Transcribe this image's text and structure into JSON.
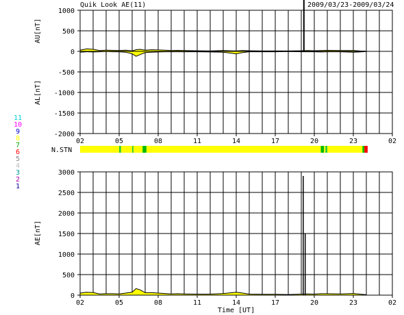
{
  "chart_data": [
    {
      "type": "area",
      "title": "Quik Look AE(11)",
      "date_range": "2009/03/23-2009/03/24",
      "ylabel_upper": "AU[nT]",
      "ylabel_lower": "AL[nT]",
      "ylim": [
        -2000,
        1000
      ],
      "yticks": [
        1000,
        500,
        0,
        -500,
        -1000,
        -1500,
        -2000
      ],
      "xlim": [
        2,
        26
      ],
      "xtick_labels": [
        "02",
        "05",
        "08",
        "11",
        "14",
        "17",
        "20",
        "23",
        "02"
      ],
      "series": [
        {
          "name": "AU",
          "x": [
            2.0,
            2.5,
            3.0,
            3.5,
            4.0,
            4.5,
            5.0,
            5.5,
            6.0,
            6.3,
            6.6,
            7.0,
            7.5,
            8.0,
            8.5,
            9.0,
            9.5,
            10.0,
            11.0,
            12.0,
            13.0,
            13.5,
            14.0,
            14.5,
            15.0,
            16.0,
            17.0,
            18.0,
            19.0,
            19.5,
            20.0,
            20.5,
            21.0,
            22.0,
            23.0,
            23.5,
            24.0
          ],
          "y": [
            30,
            60,
            50,
            20,
            30,
            25,
            20,
            30,
            10,
            40,
            50,
            30,
            40,
            35,
            30,
            20,
            25,
            20,
            15,
            10,
            20,
            15,
            10,
            20,
            15,
            10,
            10,
            10,
            15,
            20,
            15,
            20,
            25,
            20,
            20,
            10,
            5
          ]
        },
        {
          "name": "AL",
          "x": [
            2.0,
            2.5,
            3.0,
            3.5,
            4.0,
            4.5,
            5.0,
            5.5,
            6.0,
            6.3,
            6.6,
            7.0,
            7.5,
            8.0,
            8.5,
            9.0,
            9.5,
            10.0,
            11.0,
            12.0,
            13.0,
            13.5,
            14.0,
            14.5,
            15.0,
            16.0,
            17.0,
            18.0,
            19.0,
            19.5,
            20.0,
            20.5,
            21.0,
            22.0,
            23.0,
            23.5,
            24.0
          ],
          "y": [
            -20,
            -10,
            -15,
            -10,
            -5,
            -10,
            -10,
            -20,
            -60,
            -120,
            -80,
            -30,
            -20,
            -15,
            -10,
            -10,
            -10,
            -10,
            -10,
            -15,
            -20,
            -40,
            -60,
            -30,
            -10,
            -10,
            -10,
            -5,
            -10,
            -10,
            -10,
            -15,
            -10,
            -10,
            -20,
            -15,
            -5
          ]
        }
      ],
      "spike_x": 19.2
    },
    {
      "type": "heatmap",
      "label": "N.STN",
      "xlim": [
        2,
        26
      ],
      "segments": [
        {
          "x0": 2.0,
          "x1": 5.0,
          "color": "#ffff00"
        },
        {
          "x0": 5.0,
          "x1": 5.15,
          "color": "#33cc33"
        },
        {
          "x0": 5.15,
          "x1": 6.0,
          "color": "#ffff00"
        },
        {
          "x0": 6.0,
          "x1": 6.1,
          "color": "#33cc33"
        },
        {
          "x0": 6.1,
          "x1": 6.8,
          "color": "#ffff00"
        },
        {
          "x0": 6.8,
          "x1": 7.1,
          "color": "#00bb00"
        },
        {
          "x0": 7.1,
          "x1": 20.5,
          "color": "#ffff00"
        },
        {
          "x0": 20.5,
          "x1": 20.75,
          "color": "#00bb00"
        },
        {
          "x0": 20.75,
          "x1": 20.85,
          "color": "#ffff00"
        },
        {
          "x0": 20.85,
          "x1": 21.0,
          "color": "#33cc33"
        },
        {
          "x0": 21.0,
          "x1": 23.7,
          "color": "#ffff00"
        },
        {
          "x0": 23.7,
          "x1": 23.85,
          "color": "#00bb00"
        },
        {
          "x0": 23.85,
          "x1": 24.1,
          "color": "#ff0000"
        }
      ],
      "legend": [
        {
          "label": "11",
          "color": "#00cccc"
        },
        {
          "label": "10",
          "color": "#ff00ff"
        },
        {
          "label": "9",
          "color": "#0000cc"
        },
        {
          "label": "8",
          "color": "#ffff00"
        },
        {
          "label": "7",
          "color": "#00aa00"
        },
        {
          "label": "6",
          "color": "#ff0000"
        },
        {
          "label": "5",
          "color": "#888888"
        },
        {
          "label": "4",
          "color": "#bbbbbb"
        },
        {
          "label": "3",
          "color": "#009999"
        },
        {
          "label": "2",
          "color": "#aa00aa"
        },
        {
          "label": "1",
          "color": "#000099"
        }
      ]
    },
    {
      "type": "area",
      "ylabel": "AE[nT]",
      "xlabel": "Time [UT]",
      "ylim": [
        0,
        3000
      ],
      "yticks": [
        3000,
        2500,
        2000,
        1500,
        1000,
        500,
        0
      ],
      "xlim": [
        2,
        26
      ],
      "xtick_labels": [
        "02",
        "05",
        "08",
        "11",
        "14",
        "17",
        "20",
        "23",
        "02"
      ],
      "series": [
        {
          "name": "AE",
          "x": [
            2.0,
            2.5,
            3.0,
            3.5,
            4.0,
            4.5,
            5.0,
            5.5,
            6.0,
            6.3,
            6.6,
            7.0,
            7.5,
            8.0,
            8.5,
            9.0,
            9.5,
            10.0,
            11.0,
            12.0,
            13.0,
            13.5,
            14.0,
            14.5,
            15.0,
            16.0,
            17.0,
            18.0,
            19.0,
            19.5,
            20.0,
            20.5,
            21.0,
            22.0,
            23.0,
            23.5,
            24.0
          ],
          "y": [
            50,
            70,
            65,
            30,
            35,
            35,
            30,
            50,
            70,
            160,
            130,
            60,
            60,
            50,
            40,
            30,
            35,
            30,
            25,
            25,
            40,
            55,
            70,
            50,
            25,
            20,
            20,
            15,
            25,
            30,
            25,
            35,
            35,
            30,
            40,
            25,
            10
          ]
        }
      ],
      "spikes": [
        {
          "x": 19.15,
          "y": 2900
        },
        {
          "x": 19.3,
          "y": 1500
        }
      ]
    }
  ],
  "colors": {
    "fill": "#ffff00",
    "line": "#000000",
    "grid": "#000000"
  }
}
